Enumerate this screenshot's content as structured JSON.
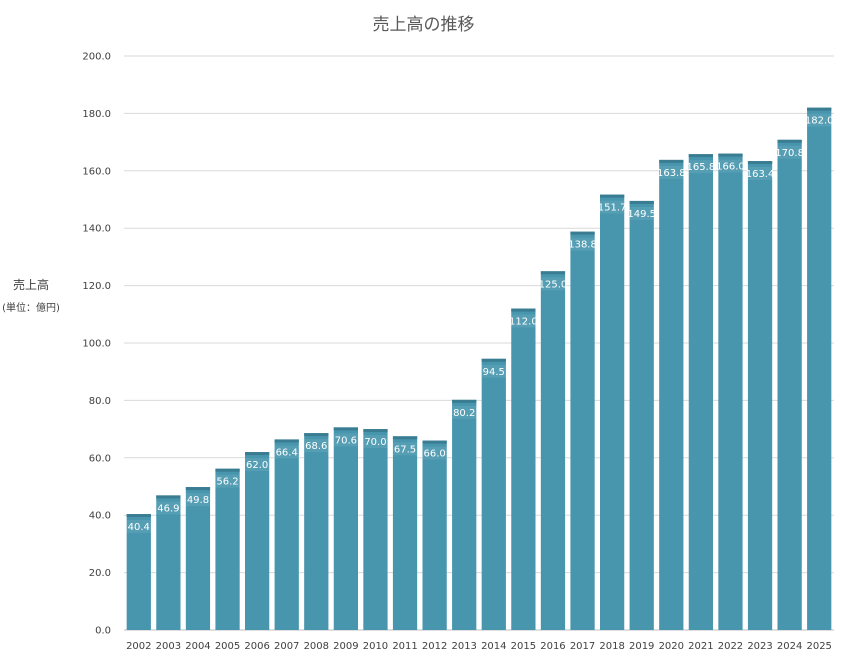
{
  "chart_data": {
    "type": "bar",
    "title": "売上高の推移",
    "ylabel": "売上高",
    "ylabel_unit": "(単位：億円)",
    "xlabel": "",
    "ylim": [
      0,
      200
    ],
    "yticks": [
      "0.0",
      "20.0",
      "40.0",
      "60.0",
      "80.0",
      "100.0",
      "120.0",
      "140.0",
      "160.0",
      "180.0",
      "200.0"
    ],
    "grid": true,
    "bar_color": "#4896AE",
    "bar_top_color": "#3A7C91",
    "categories": [
      "2002",
      "2003",
      "2004",
      "2005",
      "2006",
      "2007",
      "2008",
      "2009",
      "2010",
      "2011",
      "2012",
      "2013",
      "2014",
      "2015",
      "2016",
      "2017",
      "2018",
      "2019",
      "2020",
      "2021",
      "2022",
      "2023",
      "2024",
      "2025"
    ],
    "values": [
      40.4,
      46.9,
      49.8,
      56.2,
      62.0,
      66.4,
      68.6,
      70.6,
      70.0,
      67.5,
      66.0,
      80.2,
      94.5,
      112.0,
      125.0,
      138.8,
      151.7,
      149.5,
      163.8,
      165.8,
      166.0,
      163.4,
      170.8,
      182.0
    ],
    "data_labels": [
      "40.4",
      "46.9",
      "49.8",
      "56.2",
      "62.0",
      "66.4",
      "68.6",
      "70.6",
      "70.0",
      "67.5",
      "66.0",
      "80.2",
      "94.5",
      "112.0",
      "125.0",
      "138.8",
      "151.7",
      "149.5",
      "163.8",
      "165.8",
      "166.0",
      "163.4",
      "170.8",
      "182.0"
    ]
  }
}
